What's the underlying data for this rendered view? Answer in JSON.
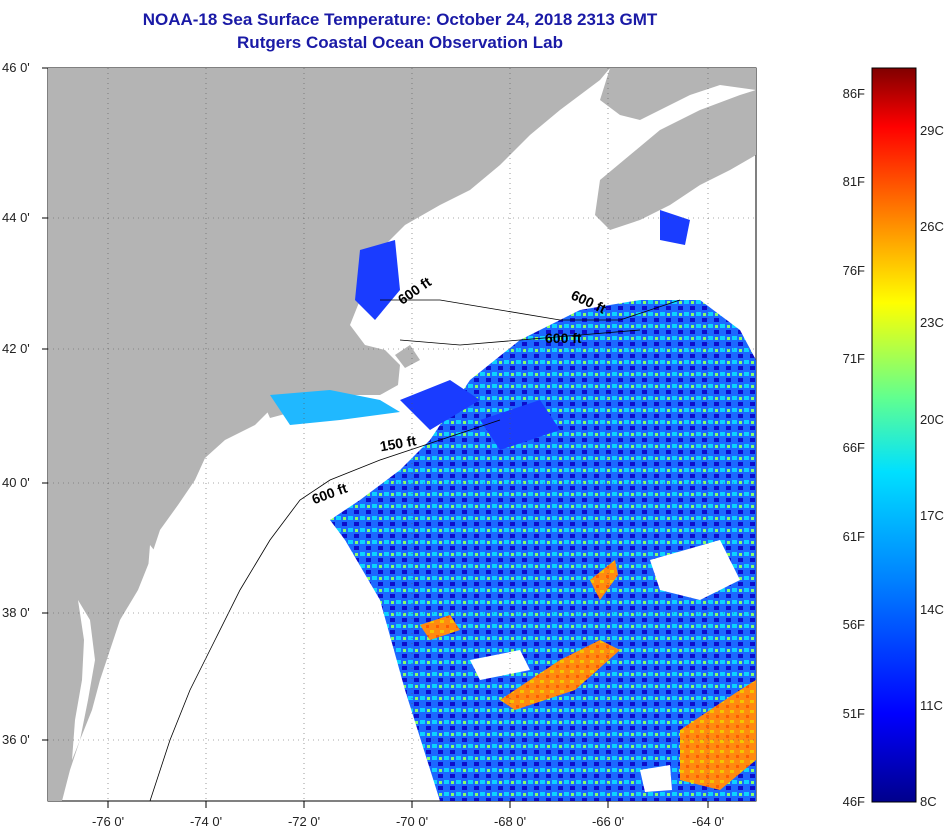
{
  "title": "NOAA-18 Sea Surface Temperature:  October 24, 2018 2313 GMT",
  "subtitle": "Rutgers Coastal Ocean Observation Lab",
  "lat_labels": [
    "46 0'",
    "44 0'",
    "42 0'",
    "40 0'",
    "38 0'",
    "36 0'"
  ],
  "lon_labels": [
    "-76 0'",
    "-74 0'",
    "-72 0'",
    "-70 0'",
    "-68 0'",
    "-66 0'",
    "-64 0'"
  ],
  "depth_labels": [
    "600 ft",
    "600 ft",
    "600 ft",
    "150 ft",
    "600 ft"
  ],
  "colorbar": {
    "fahrenheit": [
      "86F",
      "81F",
      "76F",
      "71F",
      "66F",
      "61F",
      "56F",
      "51F",
      "46F"
    ],
    "celsius": [
      "29C",
      "26C",
      "23C",
      "20C",
      "17C",
      "14C",
      "11C",
      "8C"
    ]
  },
  "colors": {
    "land": "#b4b4b4",
    "no_data": "#ffffff",
    "title": "#1a1aa6"
  }
}
